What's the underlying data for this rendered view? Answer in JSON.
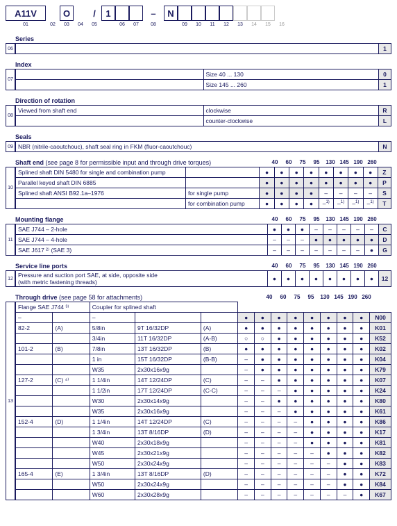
{
  "header": {
    "cells": [
      {
        "text": "A11V",
        "w": 58,
        "border": true,
        "bold": true
      },
      {
        "text": "",
        "w": 20,
        "border": false
      },
      {
        "text": "O",
        "w": 20,
        "border": true,
        "bold": true
      },
      {
        "text": "",
        "w": 20,
        "border": false
      },
      {
        "text": "/",
        "w": 20,
        "border": false,
        "bold": true
      },
      {
        "text": "1",
        "w": 20,
        "border": true,
        "bold": true
      },
      {
        "text": "",
        "w": 20,
        "border": true
      },
      {
        "text": "",
        "w": 20,
        "border": true
      },
      {
        "text": "–",
        "w": 30,
        "border": false,
        "bold": true
      },
      {
        "text": "N",
        "w": 20,
        "border": true,
        "bold": true
      },
      {
        "text": "",
        "w": 20,
        "border": true
      },
      {
        "text": "",
        "w": 20,
        "border": true
      },
      {
        "text": "",
        "w": 20,
        "border": true
      },
      {
        "text": "",
        "w": 20,
        "border": true
      },
      {
        "text": "",
        "w": 20,
        "border": true,
        "light": true
      },
      {
        "text": "",
        "w": 20,
        "border": true,
        "light": true
      },
      {
        "text": "",
        "w": 20,
        "border": true,
        "light": true
      }
    ],
    "nums": [
      {
        "text": "01",
        "w": 58
      },
      {
        "text": "02",
        "w": 20
      },
      {
        "text": "03",
        "w": 20
      },
      {
        "text": "04",
        "w": 20
      },
      {
        "text": "05",
        "w": 20
      },
      {
        "text": "",
        "w": 20
      },
      {
        "text": "06",
        "w": 20
      },
      {
        "text": "07",
        "w": 20
      },
      {
        "text": "08",
        "w": 30
      },
      {
        "text": "",
        "w": 20
      },
      {
        "text": "09",
        "w": 20
      },
      {
        "text": "10",
        "w": 20
      },
      {
        "text": "11",
        "w": 20
      },
      {
        "text": "12",
        "w": 20
      },
      {
        "text": "13",
        "w": 20
      },
      {
        "text": "14",
        "w": 20,
        "light": true
      },
      {
        "text": "15",
        "w": 20,
        "light": true
      },
      {
        "text": "16",
        "w": 20,
        "light": true
      }
    ]
  },
  "sizes": [
    "40",
    "60",
    "75",
    "95",
    "130",
    "145",
    "190",
    "260"
  ],
  "series": {
    "title": "Series",
    "num": "06",
    "rows": [
      {
        "desc": "",
        "code": "1"
      }
    ]
  },
  "index": {
    "title": "Index",
    "num": "07",
    "rows": [
      {
        "left": "",
        "right": "Size 40 ... 130",
        "code": "0"
      },
      {
        "left": "",
        "right": "Size 145 ... 260",
        "code": "1"
      }
    ]
  },
  "rotation": {
    "title": "Direction of rotation",
    "num": "08",
    "rows": [
      {
        "left": "Viewed from shaft end",
        "right": "clockwise",
        "code": "R",
        "gray": true
      },
      {
        "left": "",
        "right": "counter-clockwise",
        "code": "L"
      }
    ]
  },
  "seals": {
    "title": "Seals",
    "num": "09",
    "rows": [
      {
        "desc": "NBR (nitrile-caoutchouc), shaft seal ring in FKM (fluor-caoutchouc)",
        "code": "N",
        "gray": true
      }
    ]
  },
  "shaftEnd": {
    "title": "Shaft end",
    "titleExtra": "(see page 8 for permissible input and through drive torques)",
    "num": "10",
    "rows": [
      {
        "desc": "Splined shaft DIN 5480 for single and combination pump",
        "extra": "",
        "dots": [
          "f",
          "f",
          "f",
          "f",
          "f",
          "f",
          "f",
          "f"
        ],
        "code": "Z"
      },
      {
        "desc": "Parallel keyed shaft DIN 6885",
        "extra": "",
        "dots": [
          "fg",
          "fg",
          "fg",
          "fg",
          "fg",
          "fg",
          "fg",
          "fg"
        ],
        "code": "P"
      },
      {
        "desc": "Splined shaft ANSI B92.1a–1976",
        "extra": "for single pump",
        "dots": [
          "fg",
          "fg",
          "fg",
          "fg",
          "d",
          "d",
          "d",
          "d"
        ],
        "code": "S"
      },
      {
        "desc": "",
        "extra": "for combination pump",
        "dots": [
          "f",
          "f",
          "f",
          "f",
          "d1",
          "d1",
          "d1",
          "d1"
        ],
        "code": "T"
      }
    ]
  },
  "flange": {
    "title": "Mounting flange",
    "num": "11",
    "rows": [
      {
        "desc": "SAE J744 – 2-hole",
        "dots": [
          "f",
          "f",
          "f",
          "d",
          "d",
          "d",
          "d",
          "d"
        ],
        "code": "C"
      },
      {
        "desc": "SAE J744 – 4-hole",
        "dots": [
          "d",
          "d",
          "d",
          "fg",
          "fg",
          "fg",
          "fg",
          "fg"
        ],
        "code": "D"
      },
      {
        "desc": "SAE J617 ²⁾ (SAE 3)",
        "dots": [
          "d",
          "d",
          "d",
          "d",
          "d",
          "d",
          "d",
          "f"
        ],
        "code": "G"
      }
    ]
  },
  "ports": {
    "title": "Service line ports",
    "num": "12",
    "rows": [
      {
        "desc": "Pressure and suction port SAE, at side, opposite side\n(with metric fastening threads)",
        "dots": [
          "f",
          "f",
          "f",
          "f",
          "f",
          "f",
          "f",
          "f"
        ],
        "code": "12"
      }
    ]
  },
  "through": {
    "title": "Through drive",
    "titleExtra": "(see page 58 for attachments)",
    "num": "13",
    "headerRow": {
      "c1": "Flange SAE J744 ³⁾",
      "c2": "Coupler for splined shaft"
    },
    "rows": [
      {
        "c1": "–",
        "c2": "",
        "c3": "–",
        "c4": "",
        "c5": "",
        "dots": [
          "fg",
          "fg",
          "fg",
          "fg",
          "fg",
          "fg",
          "fg",
          "fg"
        ],
        "code": "N00"
      },
      {
        "c1": "82-2",
        "c2": "(A)",
        "c3": "5/8in",
        "c4": "9T 16/32DP",
        "c5": "(A)",
        "dots": [
          "f",
          "f",
          "f",
          "f",
          "f",
          "f",
          "f",
          "f"
        ],
        "code": "K01"
      },
      {
        "c1": "",
        "c2": "",
        "c3": "3/4in",
        "c4": "11T 16/32DP",
        "c5": "(A-B)",
        "dots": [
          "o",
          "o",
          "f",
          "f",
          "f",
          "f",
          "f",
          "f"
        ],
        "code": "K52"
      },
      {
        "c1": "101-2",
        "c2": "(B)",
        "c3": "7/8in",
        "c4": "13T 16/32DP",
        "c5": "(B)",
        "dots": [
          "f",
          "f",
          "f",
          "f",
          "f",
          "f",
          "f",
          "f"
        ],
        "code": "K02"
      },
      {
        "c1": "",
        "c2": "",
        "c3": "1 in",
        "c4": "15T 16/32DP",
        "c5": "(B-B)",
        "dots": [
          "d",
          "f",
          "f",
          "f",
          "f",
          "f",
          "f",
          "f"
        ],
        "code": "K04"
      },
      {
        "c1": "",
        "c2": "",
        "c3": "W35",
        "c4": "2x30x16x9g",
        "c5": "",
        "dots": [
          "d",
          "f",
          "f",
          "f",
          "f",
          "f",
          "f",
          "f"
        ],
        "code": "K79"
      },
      {
        "c1": "127-2",
        "c2": "(C) ⁴⁾",
        "c3": "1 1/4in",
        "c4": "14T 12/24DP",
        "c5": "(C)",
        "dots": [
          "d",
          "d",
          "f",
          "f",
          "f",
          "f",
          "f",
          "f"
        ],
        "code": "K07"
      },
      {
        "c1": "",
        "c2": "",
        "c3": "1 1/2in",
        "c4": "17T 12/24DP",
        "c5": "(C-C)",
        "dots": [
          "d",
          "d",
          "d",
          "f",
          "f",
          "f",
          "f",
          "f"
        ],
        "code": "K24"
      },
      {
        "c1": "",
        "c2": "",
        "c3": "W30",
        "c4": "2x30x14x9g",
        "c5": "",
        "dots": [
          "d",
          "d",
          "f",
          "f",
          "f",
          "f",
          "f",
          "f"
        ],
        "code": "K80"
      },
      {
        "c1": "",
        "c2": "",
        "c3": "W35",
        "c4": "2x30x16x9g",
        "c5": "",
        "dots": [
          "d",
          "d",
          "d",
          "f",
          "f",
          "f",
          "f",
          "f"
        ],
        "code": "K61"
      },
      {
        "c1": "152-4",
        "c2": "(D)",
        "c3": "1 1/4in",
        "c4": "14T 12/24DP",
        "c5": "(C)",
        "dots": [
          "d",
          "d",
          "d",
          "d",
          "f",
          "f",
          "f",
          "f"
        ],
        "code": "K86"
      },
      {
        "c1": "",
        "c2": "",
        "c3": "1 3/4in",
        "c4": "13T 8/16DP",
        "c5": "(D)",
        "dots": [
          "d",
          "d",
          "d",
          "d",
          "f",
          "f",
          "f",
          "f"
        ],
        "code": "K17"
      },
      {
        "c1": "",
        "c2": "",
        "c3": "W40",
        "c4": "2x30x18x9g",
        "c5": "",
        "dots": [
          "d",
          "d",
          "d",
          "d",
          "f",
          "f",
          "f",
          "f"
        ],
        "code": "K81"
      },
      {
        "c1": "",
        "c2": "",
        "c3": "W45",
        "c4": "2x30x21x9g",
        "c5": "",
        "dots": [
          "d",
          "d",
          "d",
          "d",
          "d",
          "f",
          "f",
          "f"
        ],
        "code": "K82"
      },
      {
        "c1": "",
        "c2": "",
        "c3": "W50",
        "c4": "2x30x24x9g",
        "c5": "",
        "dots": [
          "d",
          "d",
          "d",
          "d",
          "d",
          "d",
          "f",
          "f"
        ],
        "code": "K83"
      },
      {
        "c1": "165-4",
        "c2": "(E)",
        "c3": "1 3/4in",
        "c4": "13T 8/16DP",
        "c5": "(D)",
        "dots": [
          "d",
          "d",
          "d",
          "d",
          "d",
          "d",
          "f",
          "f"
        ],
        "code": "K72"
      },
      {
        "c1": "",
        "c2": "",
        "c3": "W50",
        "c4": "2x30x24x9g",
        "c5": "",
        "dots": [
          "d",
          "d",
          "d",
          "d",
          "d",
          "d",
          "f",
          "f"
        ],
        "code": "K84"
      },
      {
        "c1": "",
        "c2": "",
        "c3": "W60",
        "c4": "2x30x28x9g",
        "c5": "",
        "dots": [
          "d",
          "d",
          "d",
          "d",
          "d",
          "d",
          "d",
          "f"
        ],
        "code": "K67"
      }
    ]
  }
}
